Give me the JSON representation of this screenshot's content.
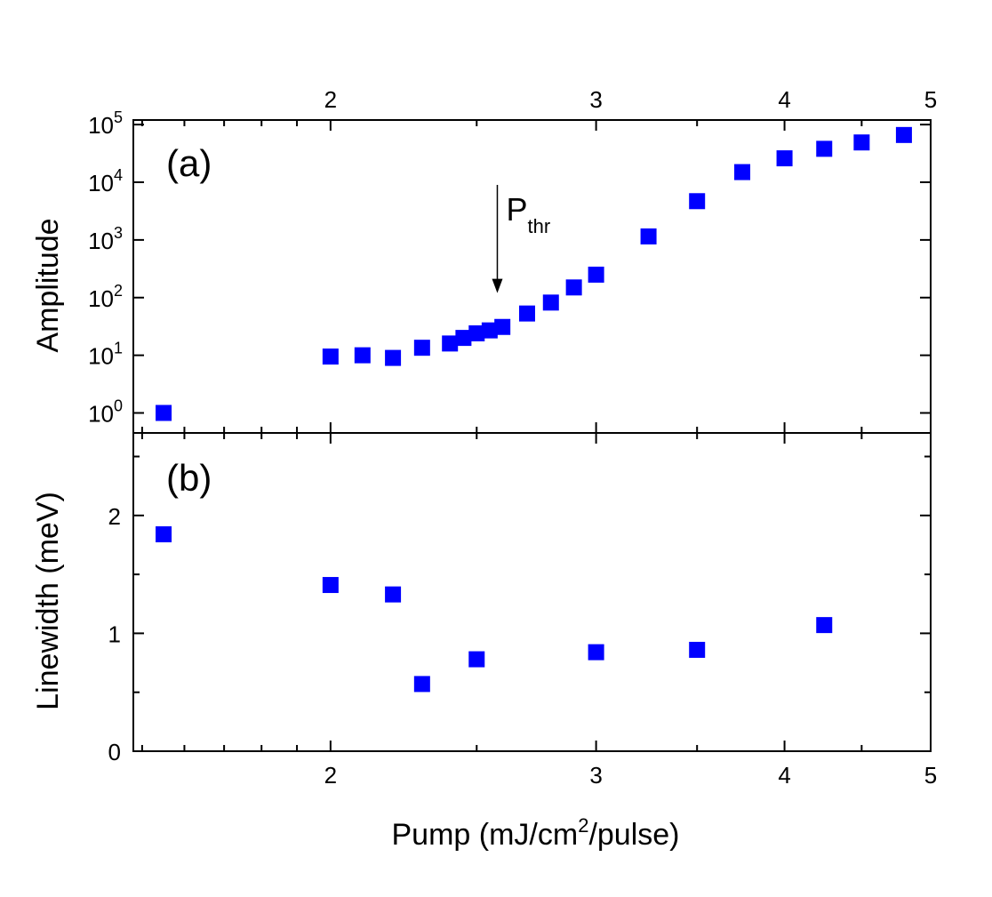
{
  "chart_data": [
    {
      "panel": "(a)",
      "type": "scatter",
      "xscale": "log",
      "yscale": "log",
      "ylabel": "Amplitude",
      "xlim": [
        1.48,
        5.0
      ],
      "ylim": [
        0.45,
        120000
      ],
      "top_ticks": [
        {
          "value": 2,
          "label": "2"
        },
        {
          "value": 3,
          "label": "3"
        },
        {
          "value": 4,
          "label": "4"
        },
        {
          "value": 5,
          "label": "5"
        }
      ],
      "yticks": [
        {
          "value": 1,
          "base": "10",
          "exp": "0"
        },
        {
          "value": 10,
          "base": "10",
          "exp": "1"
        },
        {
          "value": 100,
          "base": "10",
          "exp": "2"
        },
        {
          "value": 1000,
          "base": "10",
          "exp": "3"
        },
        {
          "value": 10000,
          "base": "10",
          "exp": "4"
        },
        {
          "value": 100000,
          "base": "10",
          "exp": "5"
        }
      ],
      "annotation": {
        "text": "P",
        "sub": "thr",
        "x": 2.58,
        "y_from": 9000,
        "y_to": 120
      },
      "color": "#0000ff",
      "points": [
        {
          "x": 1.55,
          "y": 1.0
        },
        {
          "x": 2.0,
          "y": 9.5
        },
        {
          "x": 2.1,
          "y": 10.0
        },
        {
          "x": 2.2,
          "y": 9.0
        },
        {
          "x": 2.3,
          "y": 13.5
        },
        {
          "x": 2.4,
          "y": 16.0
        },
        {
          "x": 2.45,
          "y": 20.0
        },
        {
          "x": 2.5,
          "y": 24.0
        },
        {
          "x": 2.55,
          "y": 27.0
        },
        {
          "x": 2.6,
          "y": 31.0
        },
        {
          "x": 2.7,
          "y": 53.0
        },
        {
          "x": 2.8,
          "y": 82.0
        },
        {
          "x": 2.9,
          "y": 150.0
        },
        {
          "x": 3.0,
          "y": 250.0
        },
        {
          "x": 3.25,
          "y": 1150.0
        },
        {
          "x": 3.5,
          "y": 4700.0
        },
        {
          "x": 3.75,
          "y": 15000.0
        },
        {
          "x": 4.0,
          "y": 26000.0
        },
        {
          "x": 4.25,
          "y": 38000.0
        },
        {
          "x": 4.5,
          "y": 49000.0
        },
        {
          "x": 4.8,
          "y": 66000.0
        }
      ]
    },
    {
      "panel": "(b)",
      "type": "scatter",
      "xscale": "log",
      "yscale": "linear",
      "ylabel": "Linewidth (meV)",
      "xlabel": {
        "pre": "Pump (mJ/cm",
        "sup": "2",
        "post": "/pulse)"
      },
      "xlim": [
        1.48,
        5.0
      ],
      "ylim": [
        0,
        2.7
      ],
      "xticks": [
        {
          "value": 2,
          "label": "2"
        },
        {
          "value": 3,
          "label": "3"
        },
        {
          "value": 4,
          "label": "4"
        },
        {
          "value": 5,
          "label": "5"
        }
      ],
      "yticks": [
        {
          "value": 0,
          "label": "0"
        },
        {
          "value": 1,
          "label": "1"
        },
        {
          "value": 2,
          "label": "2"
        }
      ],
      "color": "#0000ff",
      "points": [
        {
          "x": 1.55,
          "y": 1.84
        },
        {
          "x": 2.0,
          "y": 1.41
        },
        {
          "x": 2.2,
          "y": 1.33
        },
        {
          "x": 2.3,
          "y": 0.57
        },
        {
          "x": 2.5,
          "y": 0.78
        },
        {
          "x": 3.0,
          "y": 0.84
        },
        {
          "x": 3.5,
          "y": 0.86
        },
        {
          "x": 4.25,
          "y": 1.07
        }
      ]
    }
  ]
}
